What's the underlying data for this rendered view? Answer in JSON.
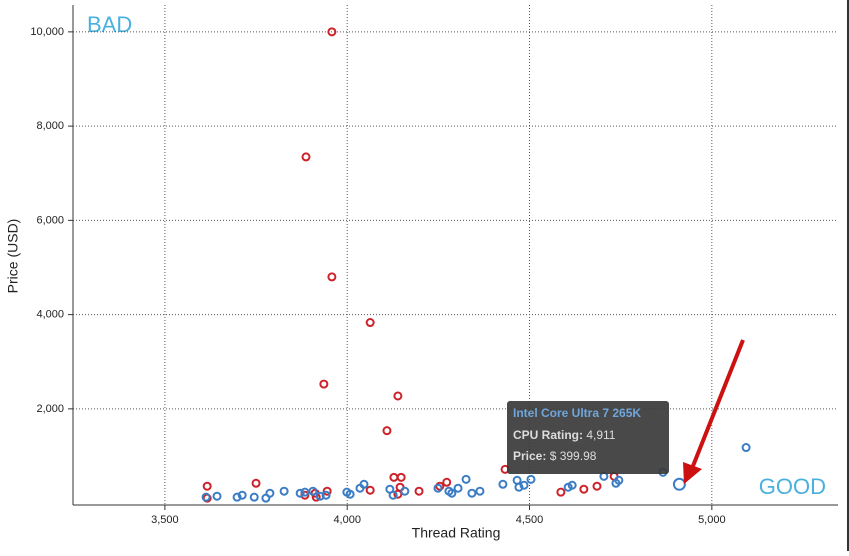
{
  "chart_data": {
    "type": "scatter",
    "x_label": "Thread Rating",
    "y_label": "Price (USD)",
    "annotations": {
      "bad": "BAD",
      "good": "GOOD"
    },
    "xlim": [
      3248,
      5346
    ],
    "ylim": [
      -40,
      10570
    ],
    "xticks": [
      {
        "value": 3500,
        "label": "3,500"
      },
      {
        "value": 4000,
        "label": "4,000"
      },
      {
        "value": 4500,
        "label": "4,500"
      },
      {
        "value": 5000,
        "label": "5,000"
      }
    ],
    "yticks": [
      {
        "value": 2000,
        "label": "2,000"
      },
      {
        "value": 4000,
        "label": "4,000"
      },
      {
        "value": 6000,
        "label": "6,000"
      },
      {
        "value": 8000,
        "label": "8,000"
      },
      {
        "value": 10000,
        "label": "10,000"
      }
    ],
    "grid": true,
    "series": [
      {
        "color": "#cc2229",
        "x": [
          3958,
          3887,
          3958,
          4063,
          3936,
          4139,
          4109,
          3616,
          3616,
          3750,
          3884,
          3912,
          3945,
          4063,
          4128,
          4148,
          4145,
          4139,
          4197,
          4254,
          4273,
          4433,
          4586,
          4649,
          4685,
          4732,
          3915
        ],
        "values": [
          10000,
          7347,
          4800,
          3832,
          2526,
          2274,
          1537,
          358,
          105,
          421,
          168,
          210,
          253,
          274,
          547,
          547,
          337,
          189,
          253,
          358,
          442,
          716,
          232,
          295,
          358,
          568,
          126
        ]
      },
      {
        "color": "#3b7dc4",
        "x": [
          3613,
          3643,
          3698,
          3712,
          3745,
          3777,
          3788,
          3827,
          3871,
          3884,
          3906,
          3926,
          3942,
          3999,
          4008,
          4035,
          4046,
          4117,
          4126,
          4158,
          4249,
          4279,
          4287,
          4304,
          4326,
          4342,
          4364,
          4427,
          4466,
          4471,
          4485,
          4504,
          4606,
          4617,
          4704,
          4737,
          4745,
          4866,
          5094,
          4911
        ],
        "values": [
          126,
          147,
          126,
          168,
          126,
          105,
          210,
          253,
          210,
          232,
          253,
          147,
          168,
          232,
          189,
          316,
          400,
          295,
          168,
          253,
          316,
          253,
          210,
          316,
          505,
          210,
          253,
          400,
          484,
          337,
          379,
          505,
          337,
          379,
          568,
          421,
          484,
          653,
          1179,
          399.98
        ]
      }
    ],
    "tooltip": {
      "title": "Intel Core Ultra 7 265K",
      "rating_label": "CPU Rating:",
      "rating": "4,911",
      "price_label": "Price:",
      "price": "$ 399.98"
    }
  }
}
